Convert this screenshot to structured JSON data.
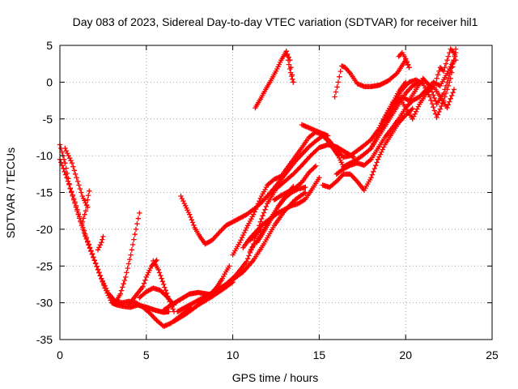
{
  "chart_data": {
    "type": "scatter",
    "title": "Day 083 of 2023, Sidereal Day-to-day VTEC variation (SDTVAR) for receiver hil1",
    "xlabel": "GPS time / hours",
    "ylabel": "SDTVAR / TECUs",
    "xlim": [
      0,
      25
    ],
    "ylim": [
      -35,
      5
    ],
    "xticks": [
      0,
      5,
      10,
      15,
      20,
      25
    ],
    "yticks": [
      5,
      0,
      -5,
      -10,
      -15,
      -20,
      -25,
      -30,
      -35
    ],
    "grid": true,
    "marker": "+",
    "color": "#ff0000",
    "series": [
      {
        "x": [
          0.0,
          0.3,
          0.6,
          1.0,
          1.4,
          1.8,
          2.2,
          2.6,
          3.0,
          3.3,
          3.7,
          4.1,
          4.5,
          5.0,
          5.5,
          6.0,
          6.3
        ],
        "y": [
          -8.5,
          -11.0,
          -14.5,
          -17.5,
          -20.5,
          -23.0,
          -25.5,
          -28.0,
          -30.0,
          -30.3,
          -30.5,
          -30.6,
          -30.3,
          -30.6,
          -31.0,
          -31.3,
          -31.2
        ]
      },
      {
        "x": [
          0.0,
          0.4,
          0.8,
          1.2,
          1.6,
          2.0,
          2.4,
          2.8,
          3.2,
          3.6,
          4.0,
          4.4,
          4.8,
          5.2,
          5.6,
          6.0,
          6.4,
          6.8,
          7.2,
          7.6
        ],
        "y": [
          -10.5,
          -13.0,
          -15.8,
          -18.8,
          -21.6,
          -24.2,
          -26.7,
          -28.7,
          -29.8,
          -30.0,
          -29.8,
          -30.0,
          -30.6,
          -31.4,
          -32.4,
          -33.2,
          -32.8,
          -32.1,
          -31.3,
          -30.7
        ]
      },
      {
        "x": [
          0.3,
          0.5,
          0.7,
          0.9,
          1.1,
          1.3,
          1.6
        ],
        "y": [
          -9.0,
          -10.0,
          -11.0,
          -12.5,
          -14.0,
          -15.5,
          -17.0
        ]
      },
      {
        "x": [
          1.3,
          1.5,
          1.6,
          1.7
        ],
        "y": [
          -19.0,
          -17.5,
          -16.0,
          -14.8
        ]
      },
      {
        "x": [
          2.2,
          2.4,
          2.5
        ],
        "y": [
          -22.8,
          -21.8,
          -21.0
        ]
      },
      {
        "x": [
          3.2,
          3.5,
          3.8,
          4.1,
          4.4,
          4.6
        ],
        "y": [
          -30.0,
          -28.8,
          -26.5,
          -23.5,
          -20.0,
          -17.8
        ]
      },
      {
        "x": [
          4.0,
          4.4,
          4.8,
          5.0,
          5.3,
          5.6
        ],
        "y": [
          -30.2,
          -29.0,
          -27.8,
          -26.5,
          -25.0,
          -24.2
        ]
      },
      {
        "x": [
          5.4,
          5.7,
          6.0,
          6.3,
          6.6
        ],
        "y": [
          -24.3,
          -25.5,
          -27.5,
          -29.5,
          -31.2
        ]
      },
      {
        "x": [
          4.6,
          5.0,
          5.4,
          5.8,
          6.2,
          6.6
        ],
        "y": [
          -29.3,
          -28.5,
          -28.0,
          -28.3,
          -29.2,
          -30.3
        ]
      },
      {
        "x": [
          6.0,
          6.5,
          7.0,
          7.5,
          8.0,
          8.5,
          8.8
        ],
        "y": [
          -31.0,
          -30.2,
          -29.5,
          -28.8,
          -28.6,
          -28.8,
          -28.9
        ]
      },
      {
        "x": [
          6.8,
          7.5,
          8.2,
          9.0,
          9.8,
          10.6,
          11.2,
          11.8,
          12.4,
          13.0,
          13.6,
          14.2
        ],
        "y": [
          -31.2,
          -30.3,
          -29.4,
          -28.4,
          -27.2,
          -25.8,
          -24.2,
          -22.0,
          -19.5,
          -17.5,
          -16.0,
          -15.0
        ]
      },
      {
        "x": [
          6.6,
          7.3,
          8.0,
          8.7,
          9.4,
          10.0
        ],
        "y": [
          -32.5,
          -31.5,
          -30.3,
          -29.3,
          -28.2,
          -27.2
        ]
      },
      {
        "x": [
          8.8,
          9.1,
          9.4,
          9.6,
          9.8
        ],
        "y": [
          -28.6,
          -27.8,
          -26.7,
          -25.8,
          -25.0
        ]
      },
      {
        "x": [
          8.0,
          8.8,
          9.6,
          10.2,
          10.8,
          11.2,
          11.6,
          12.0,
          12.5,
          13.0,
          13.5,
          14.0,
          14.5,
          15.0,
          15.5,
          16.0,
          16.5,
          17.0
        ],
        "y": [
          -30.0,
          -28.8,
          -27.5,
          -26.2,
          -24.4,
          -22.0,
          -19.0,
          -16.5,
          -14.5,
          -13.5,
          -12.5,
          -11.3,
          -10.0,
          -8.9,
          -8.5,
          -8.8,
          -9.5,
          -10.2
        ]
      },
      {
        "x": [
          10.0,
          10.4,
          10.8,
          11.2,
          11.6,
          12.0,
          12.4,
          12.8,
          13.2,
          13.6,
          14.0,
          14.4,
          14.8,
          15.2,
          15.6,
          16.0,
          16.4,
          16.8,
          17.2,
          17.6,
          18.0,
          18.4,
          18.8,
          19.2,
          19.6,
          20.0
        ],
        "y": [
          -23.5,
          -21.8,
          -19.8,
          -18.0,
          -15.8,
          -14.0,
          -13.2,
          -12.8,
          -11.5,
          -10.2,
          -8.9,
          -7.5,
          -6.8,
          -7.1,
          -8.0,
          -9.2,
          -10.2,
          -10.0,
          -9.3,
          -8.6,
          -7.8,
          -6.5,
          -4.7,
          -3.0,
          -1.3,
          0.0
        ]
      },
      {
        "x": [
          11.0,
          11.4,
          11.8,
          12.2,
          12.6,
          13.0,
          13.4,
          13.8,
          14.2
        ],
        "y": [
          -23.0,
          -21.5,
          -20.0,
          -18.5,
          -17.0,
          -15.8,
          -15.0,
          -14.5,
          -14.3
        ]
      },
      {
        "x": [
          10.6,
          11.0,
          11.4,
          11.8,
          12.2,
          12.6,
          13.0,
          13.4,
          13.8,
          14.2,
          14.6,
          15.0
        ],
        "y": [
          -22.5,
          -21.2,
          -20.2,
          -19.2,
          -18.5,
          -17.8,
          -17.3,
          -16.8,
          -16.5,
          -15.9,
          -14.5,
          -13.0
        ]
      },
      {
        "x": [
          12.4,
          12.8,
          13.2,
          13.6,
          14.0,
          14.4,
          14.8
        ],
        "y": [
          -16.0,
          -15.4,
          -14.9,
          -14.4,
          -13.6,
          -12.3,
          -11.4
        ]
      },
      {
        "x": [
          11.4,
          11.7,
          12.0,
          12.3,
          12.6,
          12.9,
          13.2,
          13.5
        ],
        "y": [
          -21.8,
          -20.7,
          -19.5,
          -18.3,
          -17.0,
          -16.0,
          -15.0,
          -14.2
        ]
      },
      {
        "x": [
          11.0,
          11.3,
          11.6
        ],
        "y": [
          -21.5,
          -20.8,
          -20.0
        ]
      },
      {
        "x": [
          7.0,
          7.2,
          7.5,
          7.8,
          8.1,
          8.4,
          8.8,
          9.2,
          9.6,
          10.0,
          10.4,
          10.8,
          11.2,
          11.6,
          12.0,
          12.4,
          12.8,
          13.2,
          13.6,
          14.0,
          14.4,
          14.8,
          15.2
        ],
        "y": [
          -15.5,
          -16.5,
          -18.0,
          -19.8,
          -21.0,
          -22.0,
          -21.5,
          -20.5,
          -19.5,
          -19.0,
          -18.5,
          -18.0,
          -17.3,
          -16.5,
          -15.5,
          -14.4,
          -13.2,
          -12.0,
          -10.8,
          -9.8,
          -8.8,
          -8.0,
          -7.3
        ]
      },
      {
        "x": [
          11.3,
          11.6,
          11.9,
          12.2,
          12.5,
          12.8,
          13.1,
          13.3,
          13.5
        ],
        "y": [
          -3.5,
          -2.3,
          -1.0,
          0.2,
          1.5,
          3.0,
          4.2,
          3.0,
          0.0
        ]
      },
      {
        "x": [
          13.1,
          13.2,
          13.3,
          13.4,
          13.5
        ],
        "y": [
          4.2,
          3.0,
          1.8,
          0.8,
          0.0
        ]
      },
      {
        "x": [
          14.0,
          14.4,
          14.8,
          15.2,
          15.5
        ],
        "y": [
          -5.8,
          -6.2,
          -6.6,
          -7.0,
          -7.3
        ]
      },
      {
        "x": [
          15.2,
          15.5,
          15.8,
          16.1,
          16.4
        ],
        "y": [
          -7.3,
          -8.0,
          -9.0,
          -10.0,
          -11.5
        ]
      },
      {
        "x": [
          15.2,
          15.6,
          16.0,
          16.4,
          16.8,
          17.2,
          17.6,
          18.0,
          18.4,
          18.8,
          19.2,
          19.6,
          20.0,
          20.4
        ],
        "y": [
          -14.0,
          -14.3,
          -13.5,
          -12.5,
          -12.5,
          -13.5,
          -14.7,
          -13.0,
          -10.5,
          -8.5,
          -7.0,
          -5.5,
          -4.5,
          -3.6
        ]
      },
      {
        "x": [
          16.4,
          16.8,
          17.2,
          17.6,
          18.0,
          18.4,
          18.8,
          19.2,
          19.6,
          20.0,
          20.4,
          20.8
        ],
        "y": [
          -11.5,
          -11.0,
          -10.5,
          -9.8,
          -9.0,
          -7.5,
          -6.0,
          -4.5,
          -3.0,
          -1.5,
          -0.5,
          0.0
        ]
      },
      {
        "x": [
          16.0,
          16.4,
          16.8,
          17.2,
          17.6,
          18.0,
          18.4,
          18.8,
          19.2,
          19.6,
          20.0,
          20.4,
          20.8,
          21.2,
          21.6,
          22.0,
          22.4,
          22.8
        ],
        "y": [
          -12.5,
          -11.8,
          -11.3,
          -11.0,
          -11.3,
          -10.5,
          -9.0,
          -7.5,
          -6.3,
          -5.0,
          -3.5,
          -2.5,
          -2.0,
          -1.0,
          0.0,
          -0.5,
          1.2,
          3.0
        ]
      },
      {
        "x": [
          15.9,
          16.1,
          16.3,
          16.5,
          16.8,
          17.2,
          17.6,
          18.0,
          18.5,
          19.0,
          19.5,
          20.0,
          20.2
        ],
        "y": [
          -2.0,
          0.0,
          2.2,
          2.0,
          1.2,
          -0.2,
          -0.6,
          -0.6,
          -0.4,
          0.2,
          1.2,
          3.0,
          2.0
        ]
      },
      {
        "x": [
          19.6,
          19.8,
          20.0,
          20.2
        ],
        "y": [
          3.5,
          4.0,
          3.2,
          2.0
        ]
      },
      {
        "x": [
          18.0,
          18.4,
          18.8,
          19.2,
          19.6,
          20.0,
          20.4,
          20.8,
          21.2,
          21.6,
          22.0,
          22.4,
          22.8
        ],
        "y": [
          -9.0,
          -7.0,
          -4.8,
          -3.0,
          -2.0,
          -3.5,
          -5.0,
          -3.0,
          -1.5,
          -0.5,
          -2.0,
          -3.5,
          -1.0
        ]
      },
      {
        "x": [
          18.6,
          19.0,
          19.4,
          19.8,
          20.2,
          20.6,
          21.0,
          21.4,
          21.8,
          22.2,
          22.6,
          22.9
        ],
        "y": [
          -6.5,
          -4.5,
          -2.5,
          -1.0,
          0.0,
          0.3,
          -0.2,
          -2.0,
          -4.8,
          -2.5,
          0.5,
          4.5
        ]
      },
      {
        "x": [
          19.0,
          19.4,
          19.8,
          20.2,
          20.6,
          21.0,
          21.4,
          21.8,
          22.2,
          22.6,
          22.9
        ],
        "y": [
          -5.0,
          -3.0,
          -2.0,
          -2.5,
          -1.0,
          0.5,
          -0.5,
          -3.0,
          -1.5,
          1.5,
          4.0
        ]
      },
      {
        "x": [
          21.8,
          22.0,
          22.2,
          22.4,
          22.6,
          22.8,
          22.9
        ],
        "y": [
          0.5,
          2.0,
          1.5,
          3.0,
          4.5,
          4.0,
          3.0
        ]
      }
    ]
  }
}
